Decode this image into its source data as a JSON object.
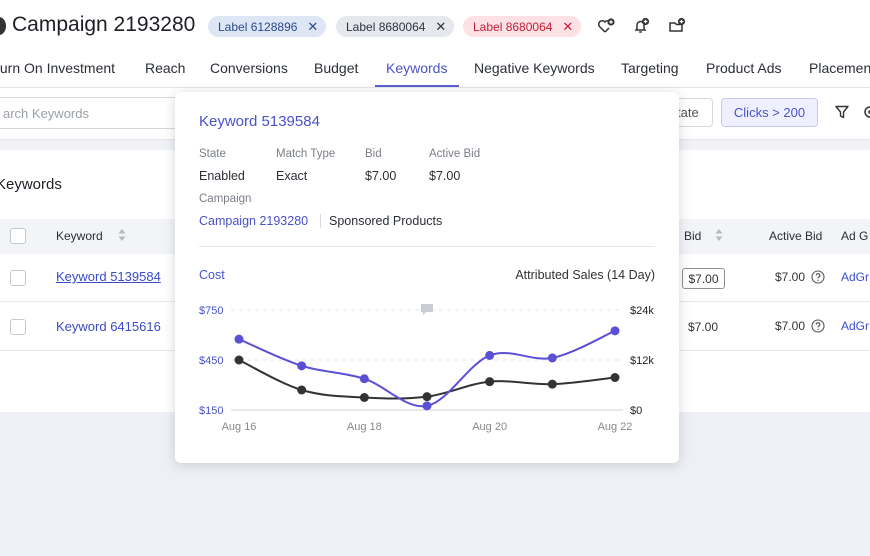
{
  "header": {
    "title": "Campaign 2193280",
    "labels": [
      {
        "text": "Label 6128896",
        "color": "#2c4a8a"
      },
      {
        "text": "Label 8680064",
        "color": "#2d3340"
      },
      {
        "text": "Label 8680064",
        "color": "#c5203a"
      }
    ],
    "close_glyph": "✕",
    "icons": [
      "heart-add-icon",
      "bell-add-icon",
      "folder-add-icon"
    ]
  },
  "tabs": [
    "turn On Investment",
    "Reach",
    "Conversions",
    "Budget",
    "Keywords",
    "Negative Keywords",
    "Targeting",
    "Product Ads",
    "Placemen"
  ],
  "active_tab": "Keywords",
  "toolbar": {
    "search_placeholder": "arch Keywords",
    "state_button": "tate",
    "clicks_filter": "Clicks > 200"
  },
  "section_title": "Keywords",
  "table": {
    "headers": {
      "keyword": "Keyword",
      "bid": "Bid",
      "active_bid": "Active Bid",
      "ad_group": "Ad G"
    },
    "rows": [
      {
        "keyword": "Keyword 5139584",
        "bid": "$7.00",
        "active_bid": "$7.00",
        "ad_group": "AdGr"
      },
      {
        "keyword": "Keyword 6415616",
        "bid": "$7.00",
        "active_bid": "$7.00",
        "ad_group": "AdGr"
      }
    ]
  },
  "popover": {
    "title": "Keyword 5139584",
    "fields": {
      "state_label": "State",
      "state": "Enabled",
      "match_type_label": "Match Type",
      "match_type": "Exact",
      "bid_label": "Bid",
      "bid": "$7.00",
      "active_bid_label": "Active Bid",
      "active_bid": "$7.00",
      "campaign_label": "Campaign",
      "campaign": "Campaign 2193280",
      "campaign_type": "Sponsored Products"
    }
  },
  "chart_data": {
    "type": "line",
    "left_axis_label": "Cost",
    "right_axis_label": "Attributed Sales (14 Day)",
    "x": [
      "Aug 16",
      "Aug 17",
      "Aug 18",
      "Aug 19",
      "Aug 20",
      "Aug 21",
      "Aug 22"
    ],
    "x_tick_labels": [
      "Aug 16",
      "Aug 18",
      "Aug 20",
      "Aug 22"
    ],
    "left_ticks": [
      "$750",
      "$450",
      "$150"
    ],
    "right_ticks": [
      "$24k",
      "$12k",
      "$0"
    ],
    "left_ylim": [
      150,
      750
    ],
    "right_ylim": [
      0,
      24000
    ],
    "colors": {
      "cost": "#333333",
      "sales": "#5b4fd6"
    },
    "series": [
      {
        "key": "cost",
        "axis": "left",
        "values": [
          450,
          270,
          225,
          230,
          320,
          305,
          345
        ]
      },
      {
        "key": "sales",
        "axis": "right",
        "values": [
          17000,
          10600,
          7500,
          1000,
          13100,
          12500,
          19000
        ]
      }
    ],
    "annotation": {
      "x": "Aug 19",
      "icon": "comment-icon"
    },
    "grid": true
  }
}
